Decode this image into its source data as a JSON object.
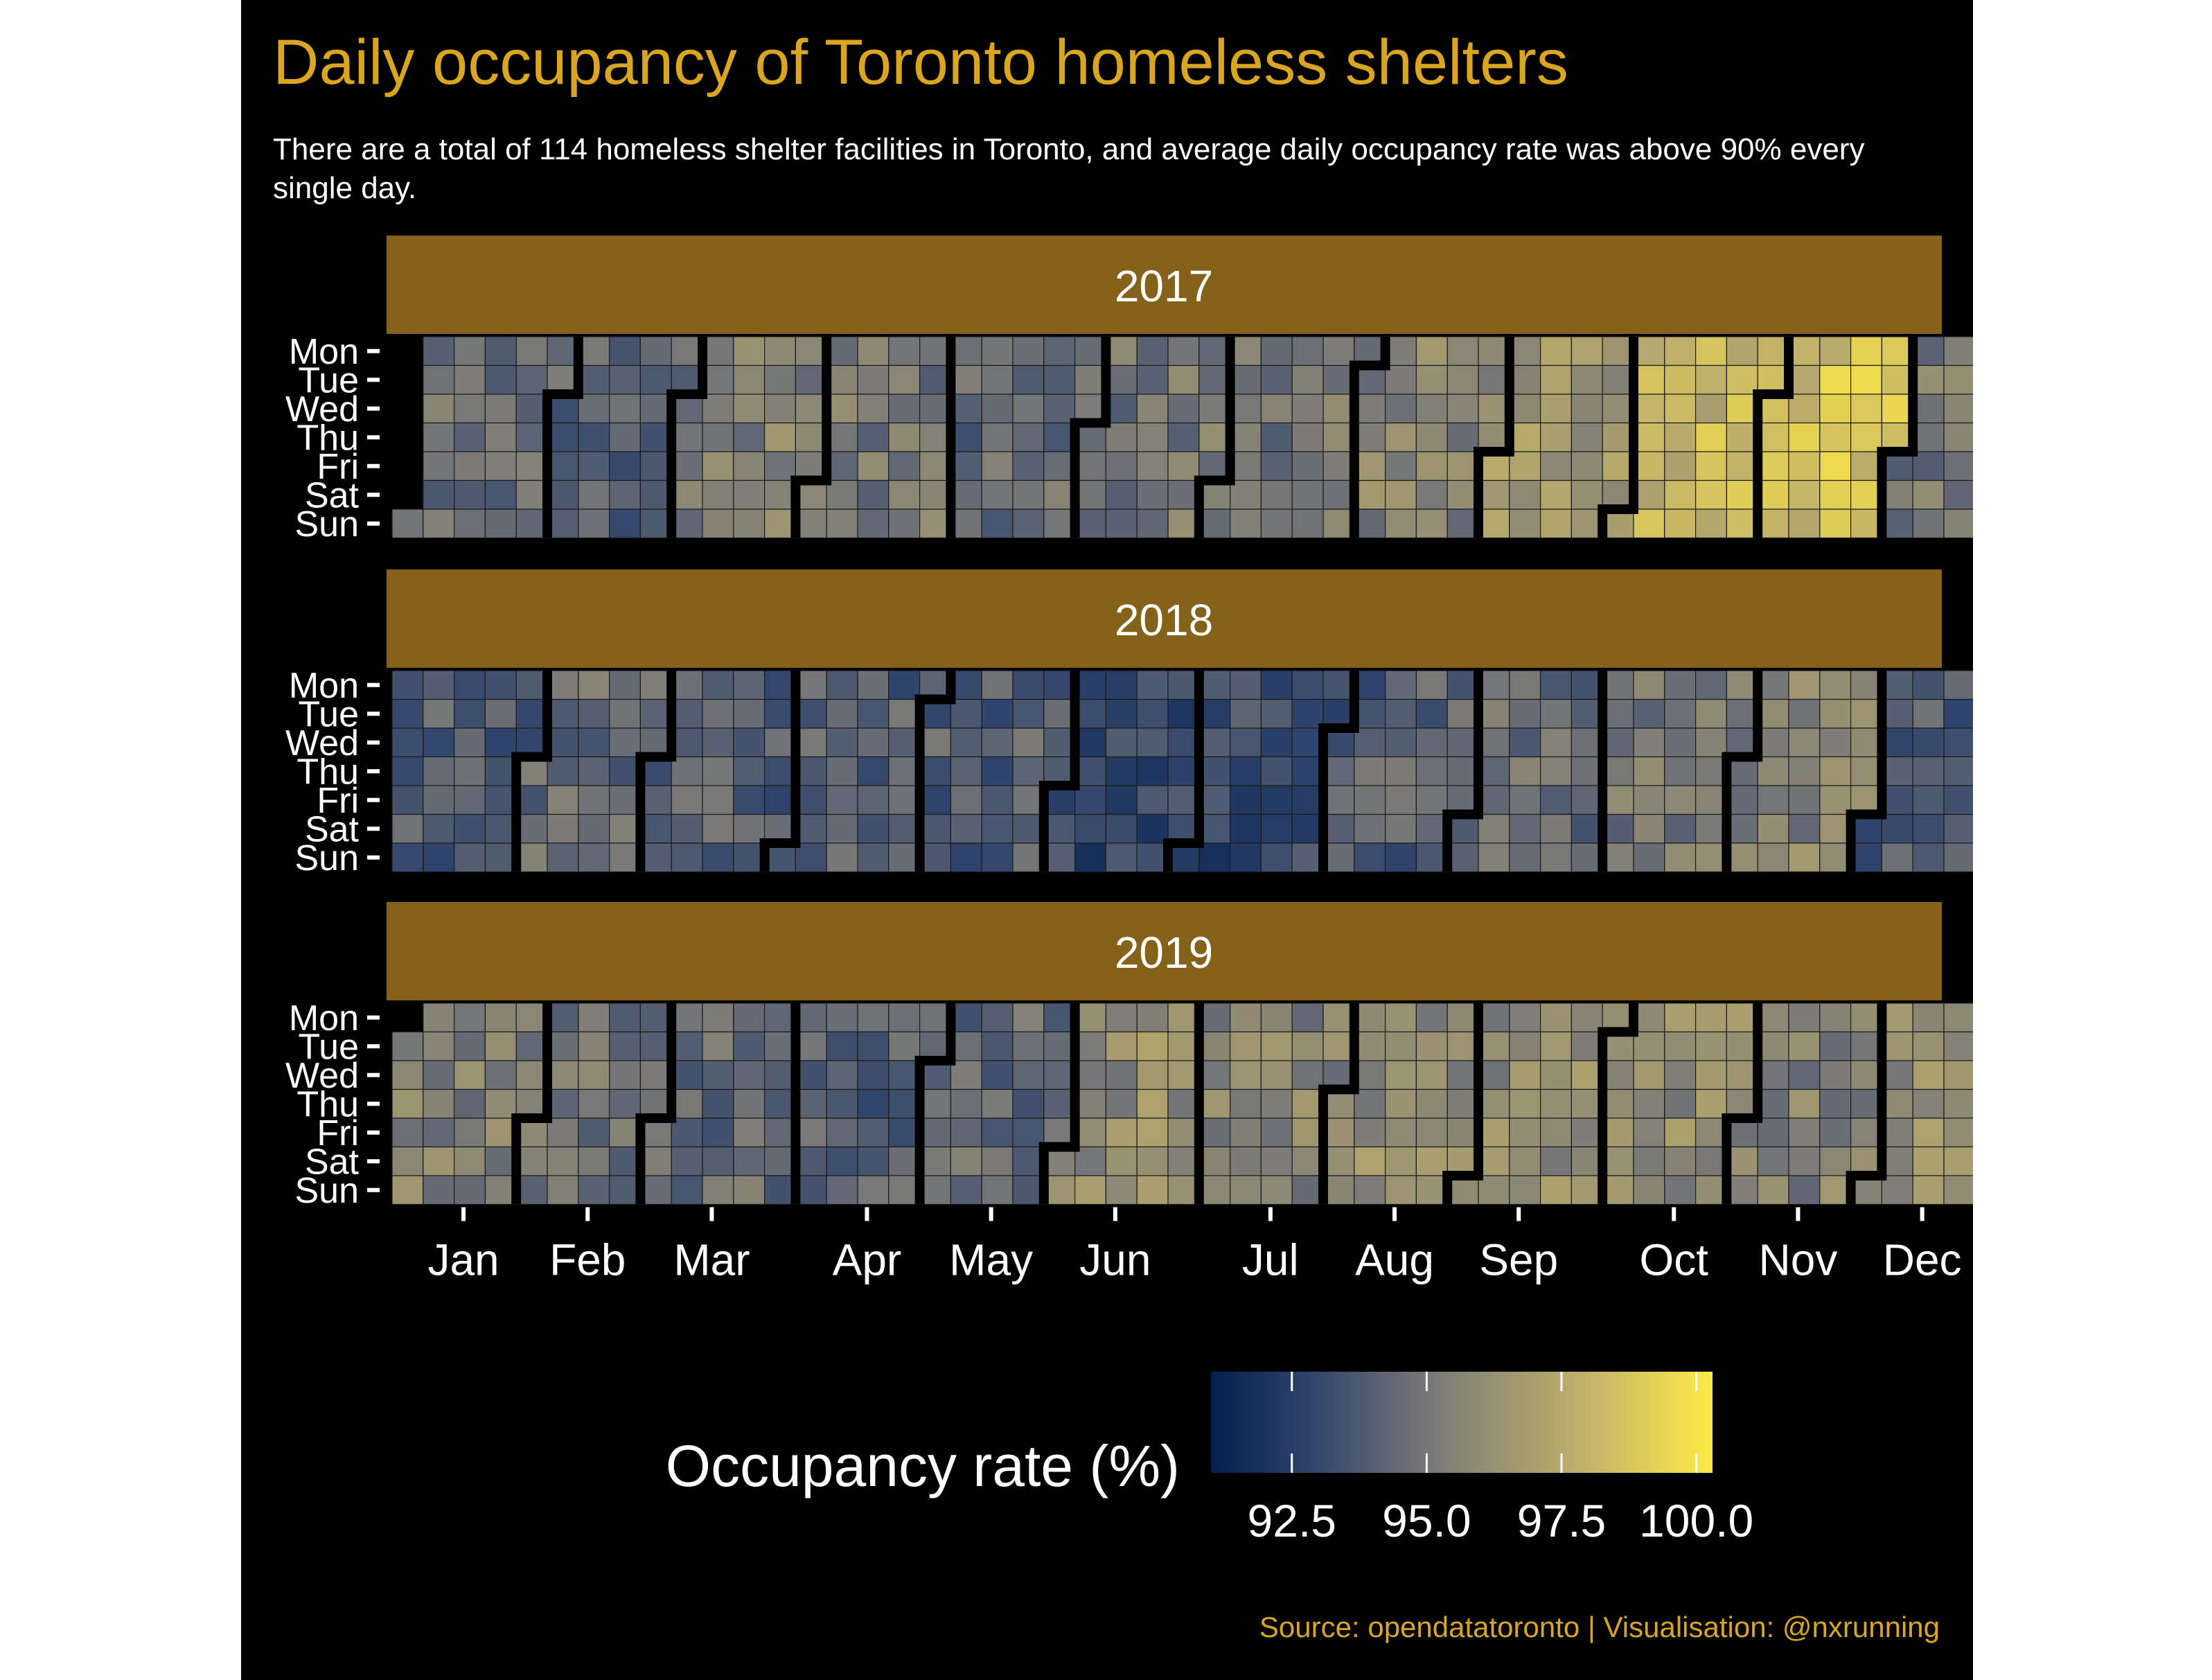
{
  "title": "Daily occupancy of Toronto homeless shelters",
  "subtitle": "There are a total of 114 homeless shelter facilities in Toronto, and average daily occupancy rate was above 90% every single day.",
  "caption": "Source: opendatatoronto | Visualisation: @nxrunning",
  "colors": {
    "background": "#000000",
    "accent": "#DAA520",
    "strip": "#84621A",
    "text": "#FFFFFF",
    "scale_low": "#00204D",
    "scale_mid": "#7C7B78",
    "scale_high": "#FFEA46"
  },
  "chart_data": {
    "type": "heatmap",
    "layout": "calendar",
    "facets": [
      "2017",
      "2018",
      "2019"
    ],
    "weekdays": [
      "Mon",
      "Tue",
      "Wed",
      "Thu",
      "Fri",
      "Sat",
      "Sun"
    ],
    "months": [
      "Jan",
      "Feb",
      "Mar",
      "Apr",
      "May",
      "Jun",
      "Jul",
      "Aug",
      "Sep",
      "Oct",
      "Nov",
      "Dec"
    ],
    "legend": {
      "title": "Occupancy rate (%)",
      "range": [
        91.0,
        100.3
      ],
      "ticks": [
        "92.5",
        "95.0",
        "97.5",
        "100.0"
      ],
      "tick_values": [
        92.5,
        95.0,
        97.5,
        100.0
      ],
      "placement": "bottom"
    },
    "monthly_average_estimate": {
      "2017": [
        94.5,
        94.0,
        95.5,
        95.0,
        94.5,
        95.0,
        95.0,
        95.5,
        96.5,
        98.0,
        98.5,
        95.0
      ],
      "2018": [
        94.0,
        94.5,
        94.0,
        94.0,
        94.0,
        93.0,
        93.0,
        94.0,
        94.5,
        95.0,
        95.5,
        94.0
      ],
      "2019": [
        95.5,
        95.0,
        94.5,
        94.0,
        94.5,
        96.0,
        95.5,
        96.0,
        96.0,
        96.0,
        95.5,
        96.0
      ]
    }
  }
}
